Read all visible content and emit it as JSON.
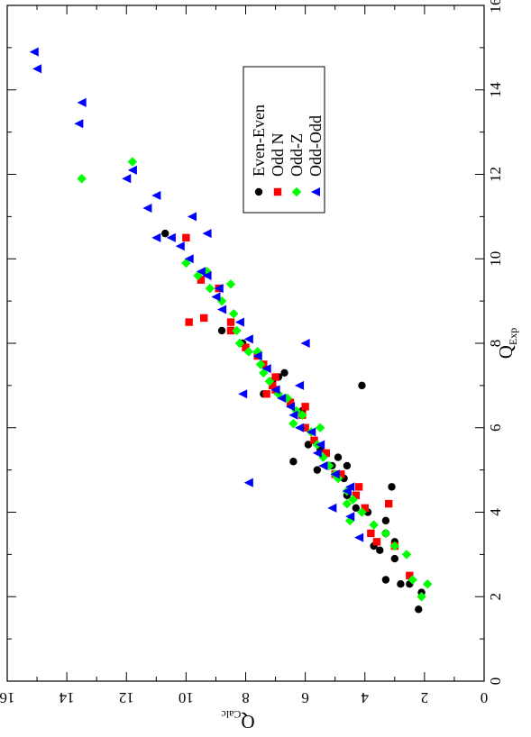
{
  "chart_data": {
    "type": "scatter",
    "title": "",
    "xlabel": {
      "main": "Q",
      "sub": "Exp"
    },
    "ylabel": {
      "main": "Q",
      "sub": "Calc"
    },
    "xlim": [
      0,
      16
    ],
    "ylim": [
      0,
      16
    ],
    "x_ticks": [
      "0",
      "2",
      "4",
      "6",
      "8",
      "10",
      "12",
      "14",
      "16"
    ],
    "y_ticks": [
      "0",
      "2",
      "4",
      "6",
      "8",
      "10",
      "12",
      "14",
      "16"
    ],
    "grid": false,
    "legend_position": "top-left",
    "orientation": "rotated-90-counterclockwise",
    "series": [
      {
        "name": "Even-Even",
        "marker": "circle",
        "color": "#000000",
        "points": [
          [
            1.7,
            2.2
          ],
          [
            2.1,
            2.1
          ],
          [
            2.3,
            2.5
          ],
          [
            2.3,
            2.8
          ],
          [
            2.4,
            3.3
          ],
          [
            2.9,
            3.0
          ],
          [
            3.3,
            3.0
          ],
          [
            3.1,
            3.5
          ],
          [
            3.5,
            3.3
          ],
          [
            3.2,
            3.7
          ],
          [
            3.8,
            3.3
          ],
          [
            4.0,
            3.9
          ],
          [
            4.1,
            4.3
          ],
          [
            4.6,
            3.1
          ],
          [
            4.4,
            4.6
          ],
          [
            4.8,
            4.7
          ],
          [
            4.9,
            5.0
          ],
          [
            5.1,
            4.6
          ],
          [
            5.3,
            4.9
          ],
          [
            5.1,
            5.1
          ],
          [
            5.0,
            5.6
          ],
          [
            5.4,
            5.3
          ],
          [
            5.5,
            5.5
          ],
          [
            5.6,
            5.9
          ],
          [
            5.2,
            6.4
          ],
          [
            6.4,
            6.1
          ],
          [
            7.2,
            6.9
          ],
          [
            7.3,
            6.7
          ],
          [
            7.0,
            4.1
          ],
          [
            6.8,
            7.4
          ],
          [
            7.1,
            7.1
          ],
          [
            8.0,
            8.1
          ],
          [
            8.3,
            8.5
          ],
          [
            8.3,
            8.8
          ],
          [
            10.6,
            10.7
          ]
        ]
      },
      {
        "name": "Odd N",
        "marker": "square",
        "color": "#ff0000",
        "points": [
          [
            2.5,
            2.5
          ],
          [
            3.2,
            3.0
          ],
          [
            3.3,
            3.6
          ],
          [
            3.5,
            3.8
          ],
          [
            4.2,
            3.2
          ],
          [
            4.1,
            4.0
          ],
          [
            4.6,
            4.2
          ],
          [
            4.4,
            4.3
          ],
          [
            4.9,
            4.8
          ],
          [
            4.9,
            5.0
          ],
          [
            5.4,
            5.3
          ],
          [
            5.7,
            5.7
          ],
          [
            6.0,
            6.0
          ],
          [
            6.3,
            6.1
          ],
          [
            6.5,
            6.0
          ],
          [
            6.6,
            6.5
          ],
          [
            6.9,
            7.0
          ],
          [
            7.0,
            7.1
          ],
          [
            6.8,
            7.3
          ],
          [
            7.2,
            7.0
          ],
          [
            7.5,
            7.4
          ],
          [
            7.7,
            7.6
          ],
          [
            7.9,
            8.0
          ],
          [
            8.3,
            8.5
          ],
          [
            8.5,
            8.5
          ],
          [
            8.6,
            9.4
          ],
          [
            8.5,
            9.9
          ],
          [
            9.5,
            9.5
          ],
          [
            9.3,
            8.9
          ],
          [
            10.5,
            10.0
          ]
        ]
      },
      {
        "name": "Odd-Z",
        "marker": "diamond",
        "color": "#00ff00",
        "points": [
          [
            2.3,
            1.9
          ],
          [
            2.0,
            2.1
          ],
          [
            2.4,
            2.4
          ],
          [
            3.0,
            2.6
          ],
          [
            3.2,
            3.0
          ],
          [
            3.5,
            3.3
          ],
          [
            3.7,
            3.7
          ],
          [
            4.0,
            4.1
          ],
          [
            3.8,
            4.5
          ],
          [
            4.3,
            4.4
          ],
          [
            4.2,
            4.6
          ],
          [
            4.5,
            4.6
          ],
          [
            4.8,
            4.9
          ],
          [
            4.9,
            5.0
          ],
          [
            5.1,
            5.2
          ],
          [
            5.3,
            5.4
          ],
          [
            5.6,
            5.6
          ],
          [
            5.9,
            5.8
          ],
          [
            6.0,
            5.5
          ],
          [
            6.3,
            6.1
          ],
          [
            6.1,
            6.4
          ],
          [
            6.4,
            6.3
          ],
          [
            6.7,
            6.6
          ],
          [
            6.8,
            6.9
          ],
          [
            7.1,
            7.2
          ],
          [
            7.3,
            7.4
          ],
          [
            7.5,
            7.5
          ],
          [
            7.8,
            7.6
          ],
          [
            7.8,
            7.9
          ],
          [
            8.0,
            8.2
          ],
          [
            8.3,
            8.3
          ],
          [
            8.7,
            8.4
          ],
          [
            9.0,
            8.8
          ],
          [
            9.4,
            8.5
          ],
          [
            9.3,
            9.2
          ],
          [
            9.7,
            9.3
          ],
          [
            9.6,
            9.6
          ],
          [
            9.9,
            10.0
          ],
          [
            11.9,
            13.5
          ],
          [
            12.3,
            11.8
          ]
        ]
      },
      {
        "name": "Odd-Odd",
        "marker": "triangle",
        "color": "#0000ff",
        "points": [
          [
            3.4,
            4.2
          ],
          [
            3.9,
            4.5
          ],
          [
            4.1,
            5.1
          ],
          [
            4.5,
            4.6
          ],
          [
            4.6,
            4.5
          ],
          [
            4.9,
            5.0
          ],
          [
            5.1,
            5.4
          ],
          [
            5.4,
            5.6
          ],
          [
            5.6,
            5.5
          ],
          [
            5.9,
            5.8
          ],
          [
            6.0,
            6.2
          ],
          [
            6.3,
            6.4
          ],
          [
            6.5,
            6.5
          ],
          [
            6.7,
            6.8
          ],
          [
            6.9,
            7.0
          ],
          [
            7.0,
            6.2
          ],
          [
            7.4,
            7.3
          ],
          [
            7.7,
            7.6
          ],
          [
            6.8,
            8.1
          ],
          [
            8.0,
            6.0
          ],
          [
            8.1,
            7.9
          ],
          [
            8.5,
            8.2
          ],
          [
            8.8,
            8.8
          ],
          [
            9.1,
            9.0
          ],
          [
            9.3,
            8.9
          ],
          [
            9.6,
            9.3
          ],
          [
            9.7,
            9.5
          ],
          [
            10.0,
            9.9
          ],
          [
            10.3,
            10.2
          ],
          [
            10.5,
            10.5
          ],
          [
            10.5,
            11.0
          ],
          [
            11.0,
            9.8
          ],
          [
            11.2,
            11.3
          ],
          [
            11.5,
            11.0
          ],
          [
            11.9,
            12.0
          ],
          [
            12.1,
            11.8
          ],
          [
            13.2,
            13.6
          ],
          [
            13.7,
            13.5
          ],
          [
            14.5,
            15.0
          ],
          [
            14.9,
            15.1
          ],
          [
            4.7,
            7.9
          ],
          [
            10.6,
            9.3
          ]
        ]
      }
    ]
  }
}
